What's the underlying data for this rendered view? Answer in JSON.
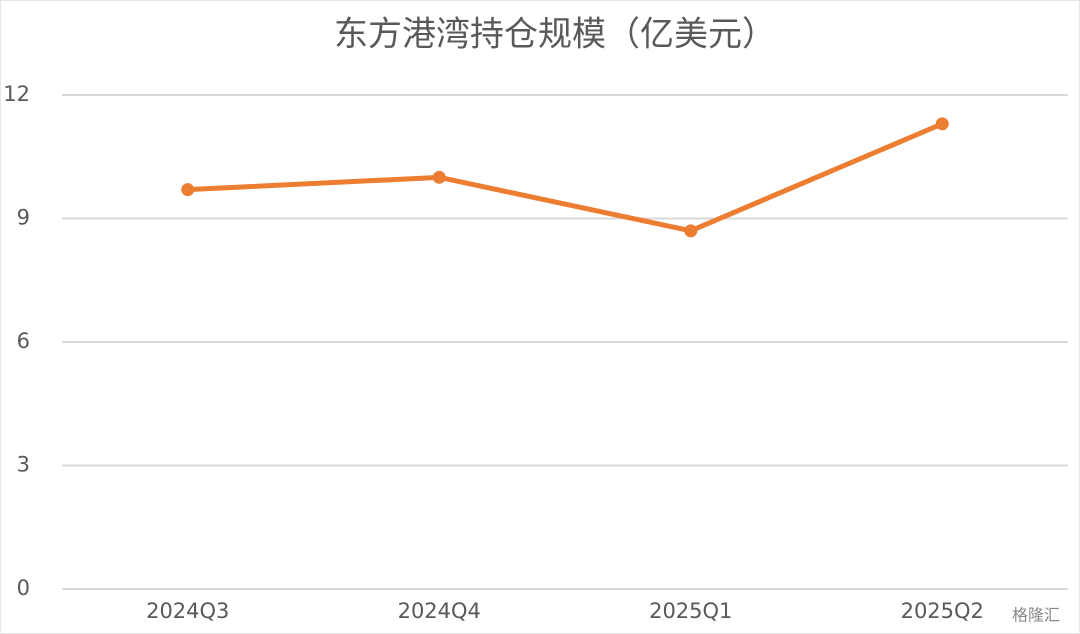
{
  "chart_data": {
    "type": "line",
    "title": "东方港湾持仓规模（亿美元）",
    "categories": [
      "2024Q3",
      "2024Q4",
      "2025Q1",
      "2025Q2"
    ],
    "series": [
      {
        "name": "持仓规模",
        "color": "#ed7d31",
        "values": [
          9.7,
          10.0,
          8.7,
          11.3
        ]
      }
    ],
    "ylim": [
      0,
      12
    ],
    "yticks": [
      0,
      3,
      6,
      9,
      12
    ],
    "grid": true,
    "legend": false,
    "watermark": "格隆汇"
  }
}
